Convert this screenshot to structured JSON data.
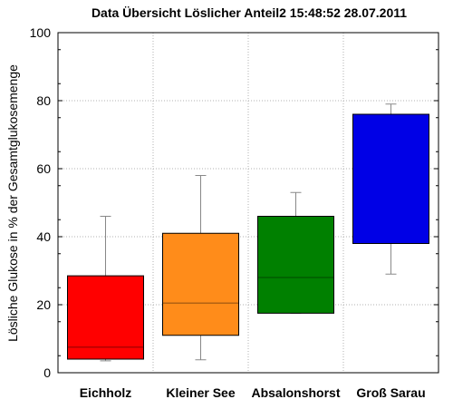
{
  "chart_data": {
    "type": "boxplot",
    "title": "Data Übersicht Löslicher Anteil2 15:48:52  28.07.2011",
    "ylabel": "Lösliche Glukose in % der Gesamtglukosemenge",
    "xlabel": "",
    "ylim": [
      0,
      100
    ],
    "yticks": [
      0,
      20,
      40,
      60,
      80,
      100
    ],
    "grid": true,
    "categories": [
      "Eichholz",
      "Kleiner See",
      "Absalonshorst",
      "Groß Sarau"
    ],
    "boxes": [
      {
        "category": "Eichholz",
        "whisker_low": 3.5,
        "q1": 4.0,
        "median": 7.5,
        "q3": 28.5,
        "whisker_high": 46.0,
        "color": "#ff0000"
      },
      {
        "category": "Kleiner See",
        "whisker_low": 3.8,
        "q1": 11.0,
        "median": 20.5,
        "q3": 41.0,
        "whisker_high": 58.0,
        "color": "#ff8c1a"
      },
      {
        "category": "Absalonshorst",
        "whisker_low": 17.5,
        "q1": 17.5,
        "median": 28.0,
        "q3": 46.0,
        "whisker_high": 53.0,
        "color": "#008000"
      },
      {
        "category": "Groß Sarau",
        "whisker_low": 29.0,
        "q1": 38.0,
        "median": 76.0,
        "q3": 76.0,
        "whisker_high": 79.0,
        "color": "#0000e6"
      }
    ]
  }
}
